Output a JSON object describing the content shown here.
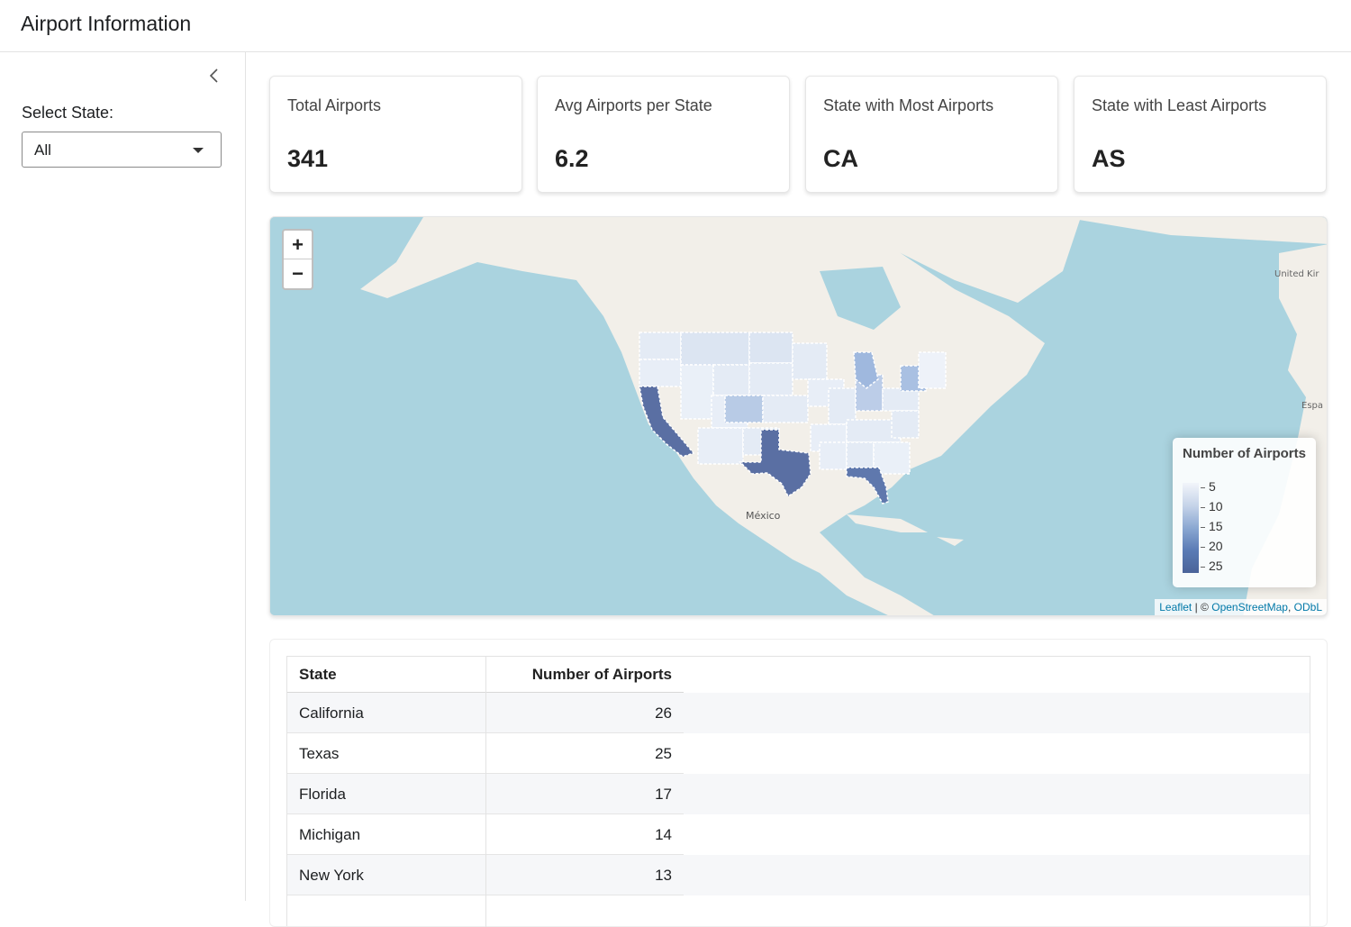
{
  "header": {
    "title": "Airport Information"
  },
  "sidebar": {
    "collapse_icon": "chevron-left-icon",
    "select_label": "Select State:",
    "select_value": "All"
  },
  "cards": [
    {
      "title": "Total Airports",
      "value": "341"
    },
    {
      "title": "Avg Airports per State",
      "value": "6.2"
    },
    {
      "title": "State with Most Airports",
      "value": "CA"
    },
    {
      "title": "State with Least Airports",
      "value": "AS"
    }
  ],
  "map": {
    "zoom_in": "+",
    "zoom_out": "−",
    "labels": {
      "mexico": "México",
      "uk": "United Kir",
      "spain": "Espa"
    },
    "legend": {
      "title": "Number of Airports",
      "ticks": [
        "5",
        "10",
        "15",
        "20",
        "25"
      ]
    },
    "attribution": {
      "leaflet": "Leaflet",
      "sep": "| ©",
      "osm": "OpenStreetMap",
      "comma": ",",
      "odbl": "ODbL"
    },
    "colors": {
      "ocean": "#aad3df",
      "land": "#f2efe9",
      "high": "#5a6fa3",
      "low": "#e8eef7"
    }
  },
  "table": {
    "headers": [
      "State",
      "Number of Airports"
    ],
    "rows": [
      [
        "California",
        "26"
      ],
      [
        "Texas",
        "25"
      ],
      [
        "Florida",
        "17"
      ],
      [
        "Michigan",
        "14"
      ],
      [
        "New York",
        "13"
      ]
    ]
  }
}
